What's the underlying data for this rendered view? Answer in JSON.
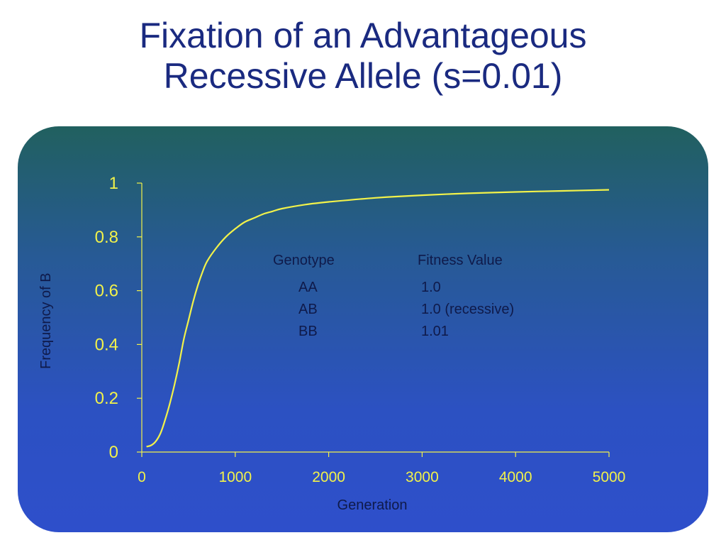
{
  "title": {
    "line1": "Fixation of an Advantageous",
    "line2": "Recessive Allele (s=0.01)"
  },
  "colors": {
    "title": "#1a2a80",
    "curve": "#f2f24a",
    "axis": "#f2f24a",
    "label_text": "#0f1a4a"
  },
  "fitness_table": {
    "header_genotype": "Genotype",
    "header_fitness": "Fitness Value",
    "rows": [
      {
        "genotype": "AA",
        "fitness": "1.0"
      },
      {
        "genotype": "AB",
        "fitness": "1.0 (recessive)"
      },
      {
        "genotype": "BB",
        "fitness": "1.01"
      }
    ]
  },
  "chart_data": {
    "type": "line",
    "title": "Fixation of an Advantageous Recessive Allele (s=0.01)",
    "xlabel": "Generation",
    "ylabel": "Frequency of B",
    "xlim": [
      0,
      5000
    ],
    "ylim": [
      0,
      1
    ],
    "x_ticks": [
      "0",
      "1000",
      "2000",
      "3000",
      "4000",
      "5000"
    ],
    "y_ticks": [
      "0",
      "0.2",
      "0.4",
      "0.6",
      "0.8",
      "1"
    ],
    "grid": false,
    "legend": "none",
    "series": [
      {
        "x": [
          50,
          100,
          150,
          200,
          250,
          300,
          350,
          400,
          450,
          500,
          550,
          600,
          650,
          700,
          800,
          900,
          1000,
          1100,
          1200,
          1300,
          1400,
          1500,
          1750,
          2000,
          2500,
          3000,
          3500,
          4000,
          4500,
          5000
        ],
        "y": [
          0.02,
          0.025,
          0.04,
          0.07,
          0.12,
          0.18,
          0.25,
          0.33,
          0.42,
          0.49,
          0.56,
          0.62,
          0.67,
          0.71,
          0.76,
          0.8,
          0.83,
          0.855,
          0.87,
          0.885,
          0.895,
          0.905,
          0.92,
          0.93,
          0.945,
          0.955,
          0.962,
          0.967,
          0.971,
          0.975
        ]
      }
    ]
  }
}
